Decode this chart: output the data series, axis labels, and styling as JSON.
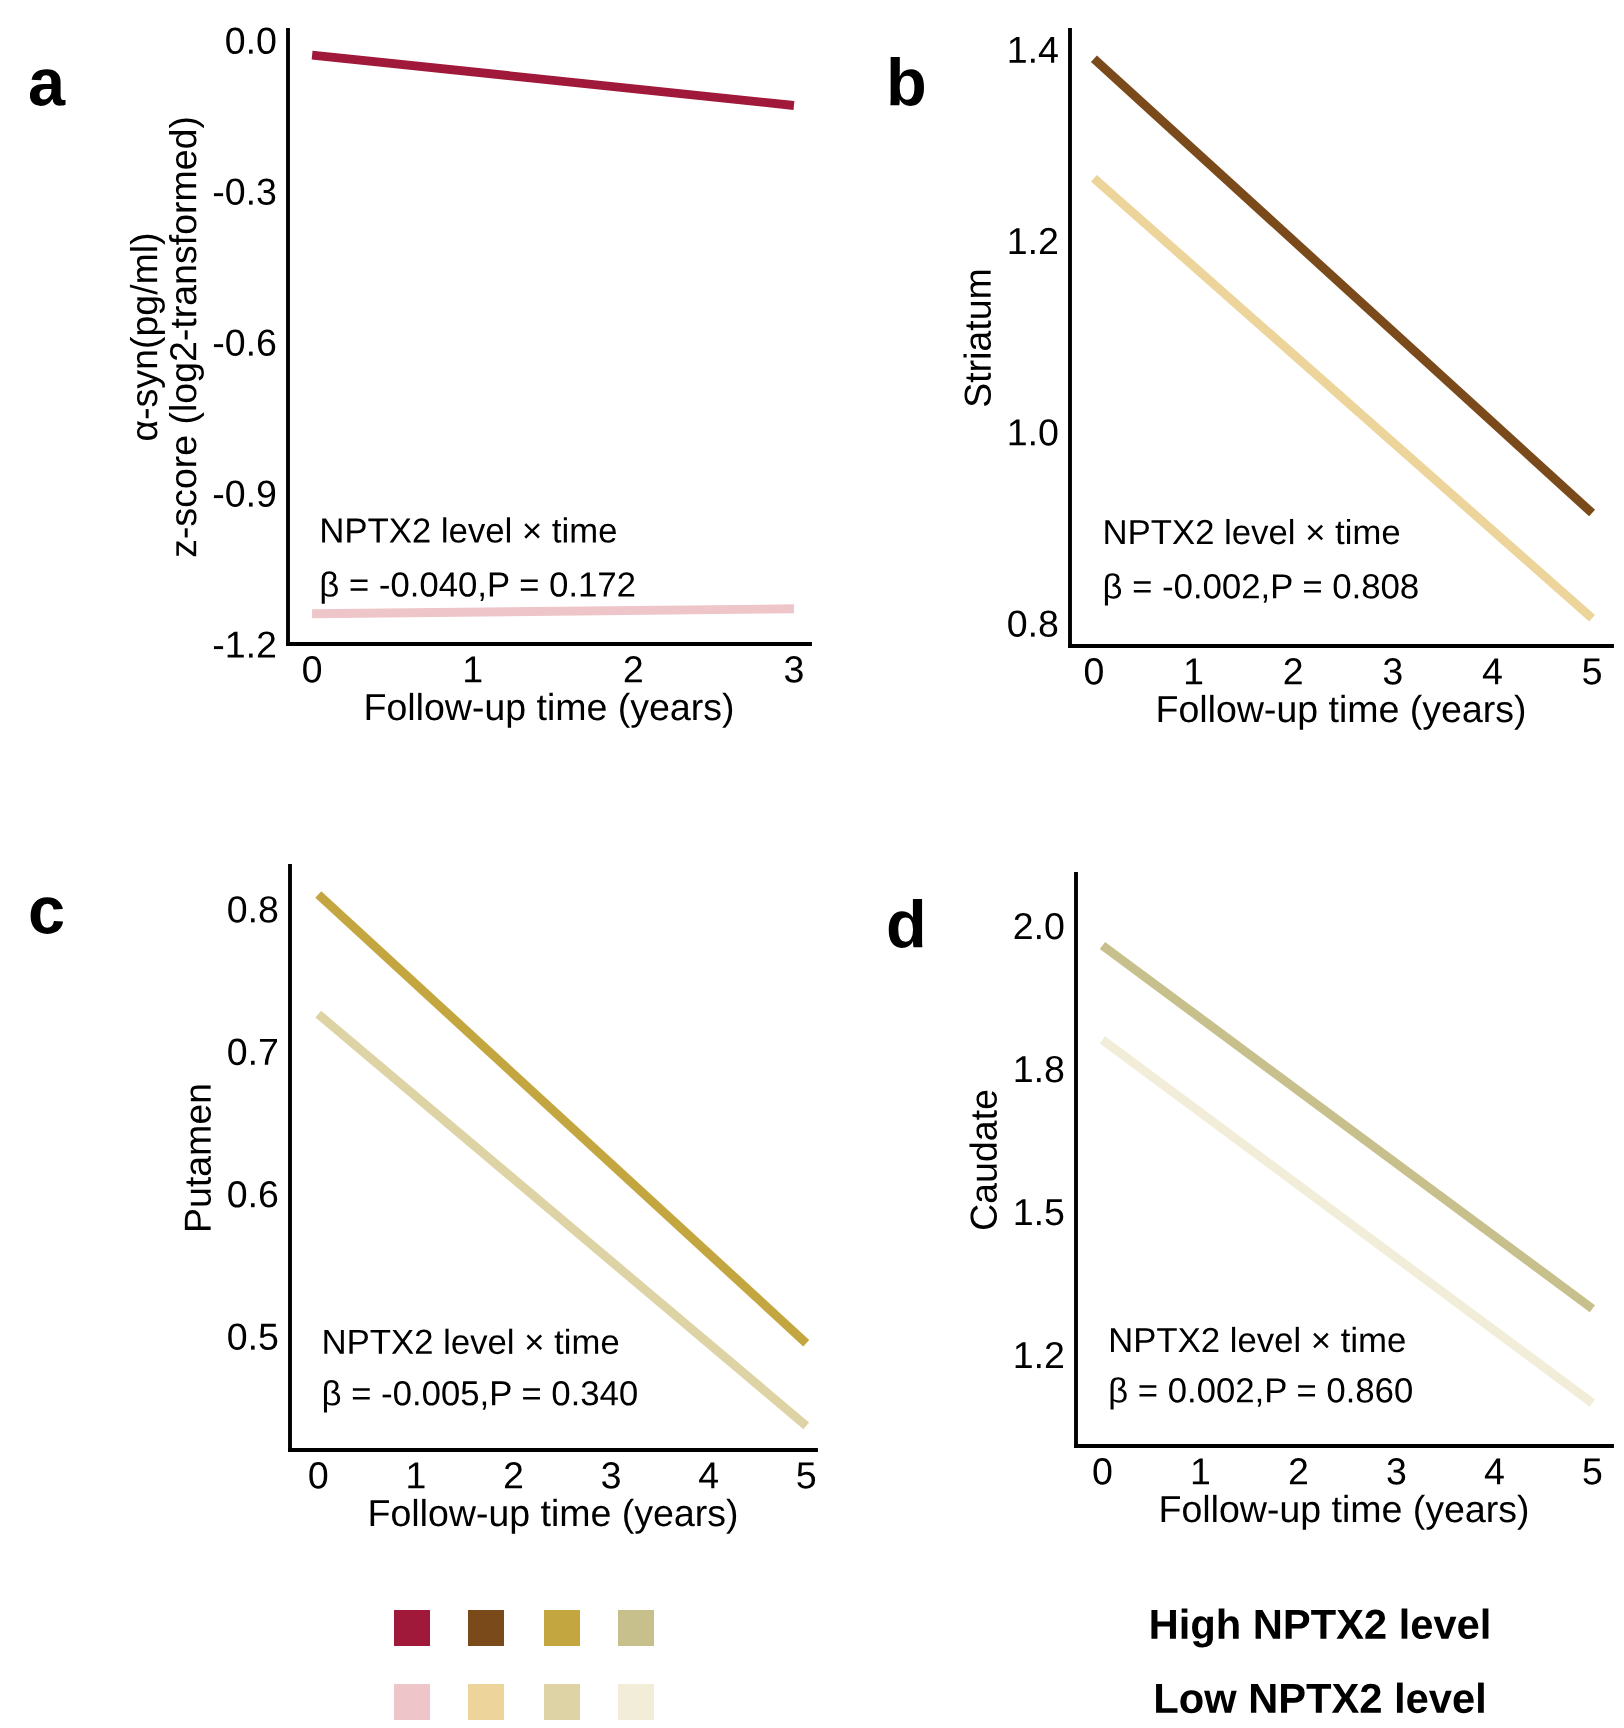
{
  "chart_data": [
    {
      "type": "line",
      "title": "a",
      "xlabel": "Follow-up time (years)",
      "ylabel": "α-syn(pg/ml)\nz-score (log2-transformed)",
      "x": [
        0,
        3
      ],
      "xlim": [
        -0.15,
        3.1
      ],
      "xticks": [
        0,
        1,
        2,
        3
      ],
      "ylim": [
        -1.2,
        0.02
      ],
      "yticks": [
        {
          "value": 0,
          "label": "0.0"
        },
        -0.3,
        -0.6,
        -0.9,
        -1.2
      ],
      "legend": "bottom",
      "annotations": [
        "NPTX2 level × time",
        "β = -0.040,P = 0.172"
      ],
      "series": [
        {
          "name": "High NPTX2 level",
          "color": "#a0183a",
          "values": [
            -0.03,
            -0.13
          ]
        },
        {
          "name": "Low NPTX2 level",
          "color": "#eec5c8",
          "values": [
            -1.14,
            -1.13
          ]
        }
      ]
    },
    {
      "type": "line",
      "title": "b",
      "xlabel": "Follow-up time (years)",
      "ylabel": "Striatum",
      "x": [
        0,
        5
      ],
      "xlim": [
        -0.24,
        5.2
      ],
      "xticks": [
        0,
        1,
        2,
        3,
        4,
        5
      ],
      "ylim": [
        0.776,
        1.42
      ],
      "yticks": [
        1.4,
        1.2,
        {
          "value": 1.0,
          "label": "1.0"
        },
        0.8
      ],
      "annotations": [
        "NPTX2 level × time",
        "β = -0.002,P = 0.808"
      ],
      "series": [
        {
          "color": "#7a4a1a",
          "values": [
            1.39,
            0.915
          ]
        },
        {
          "color": "#ecd49b",
          "values": [
            1.265,
            0.805
          ]
        }
      ]
    },
    {
      "type": "line",
      "title": "c",
      "xlabel": "Follow-up time (years)",
      "ylabel": "Putamen",
      "x": [
        0,
        5
      ],
      "xlim": [
        -0.29,
        5.1
      ],
      "xticks": [
        0,
        1,
        2,
        3,
        4,
        5
      ],
      "ylim": [
        0.42,
        0.83
      ],
      "yticks": [
        0.8,
        0.7,
        0.6,
        0.5
      ],
      "annotations": [
        "NPTX2 level × time",
        "β = -0.005,P = 0.340"
      ],
      "series": [
        {
          "color": "#c4a640",
          "values": [
            0.81,
            0.495
          ]
        },
        {
          "color": "#ddd3a4",
          "values": [
            0.726,
            0.437
          ]
        }
      ]
    },
    {
      "type": "line",
      "title": "d",
      "xlabel": "Follow-up time (years)",
      "ylabel": "Caudate",
      "x": [
        0,
        5
      ],
      "xlim": [
        -0.27,
        5.2
      ],
      "xticks": [
        0,
        1,
        2,
        3,
        4,
        5
      ],
      "ylim": [
        1.09,
        2.09
      ],
      "yticks": [
        {
          "value": 2.0,
          "label": "2.0"
        },
        {
          "value": 1.75,
          "label": "1.8"
        },
        1.5,
        {
          "value": 1.25,
          "label": "1.2"
        }
      ],
      "annotations": [
        "NPTX2 level × time",
        "β = 0.002,P = 0.860"
      ],
      "series": [
        {
          "color": "#c8c08c",
          "values": [
            1.965,
            1.33
          ]
        },
        {
          "color": "#f1edd8",
          "values": [
            1.8,
            1.165
          ]
        }
      ]
    }
  ]
}
